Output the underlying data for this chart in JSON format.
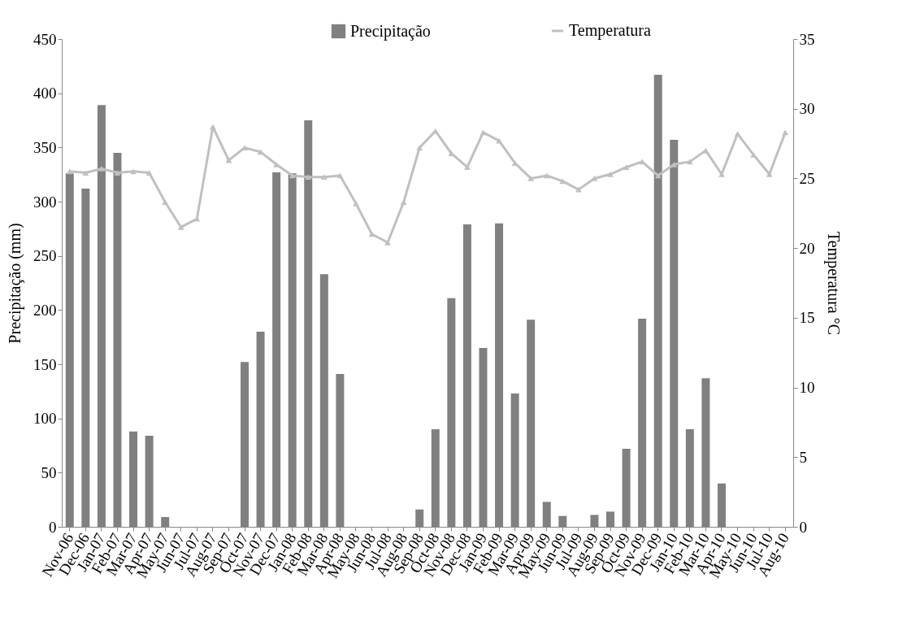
{
  "chart_data": {
    "type": "bar",
    "ylabel": "Precipitação (mm)",
    "y2label": "Temperatura °C",
    "categories": [
      "Nov-06",
      "Dec-06",
      "Jan-07",
      "Feb-07",
      "Mar-07",
      "Apr-07",
      "May-07",
      "Jun-07",
      "Jul-07",
      "Aug-07",
      "Sep-07",
      "Oct-07",
      "Nov-07",
      "Dec-07",
      "Jan-08",
      "Feb-08",
      "Mar-08",
      "Apr-08",
      "May-08",
      "Jun-08",
      "Jul-08",
      "Aug-08",
      "Sep-08",
      "Oct-08",
      "Nov-08",
      "Dec-08",
      "Jan-09",
      "Feb-09",
      "Mar-09",
      "Apr-09",
      "May-09",
      "Jun-09",
      "Jul-09",
      "Aug-09",
      "Sep-09",
      "Oct-09",
      "Nov-09",
      "Dec-09",
      "Jan-10",
      "Feb-10",
      "Mar-10",
      "Apr-10",
      "May-10",
      "Jun-10",
      "Jul-10",
      "Aug-10"
    ],
    "series": [
      {
        "name": "Precipitação",
        "color": "#808080",
        "values": [
          326,
          312,
          389,
          345,
          88,
          84,
          9,
          0,
          0,
          0,
          0,
          152,
          180,
          327,
          326,
          375,
          233,
          141,
          0,
          0,
          0,
          0,
          16,
          90,
          211,
          279,
          165,
          280,
          123,
          191,
          23,
          10,
          0,
          11,
          14,
          72,
          192,
          417,
          357,
          90,
          137,
          40,
          0,
          0,
          0,
          0
        ]
      },
      {
        "name": "Temperatura",
        "type": "line",
        "axis": "y2",
        "color": "#c0c0c0",
        "marker": "triangle",
        "values": [
          25.5,
          25.4,
          25.7,
          25.4,
          25.5,
          25.4,
          23.3,
          21.5,
          22.1,
          28.7,
          26.3,
          27.2,
          26.9,
          26.0,
          25.2,
          25.1,
          25.1,
          25.2,
          23.2,
          21.0,
          20.4,
          23.3,
          27.2,
          28.4,
          26.8,
          25.8,
          28.3,
          27.7,
          26.1,
          25.0,
          25.2,
          24.8,
          24.2,
          25.0,
          25.3,
          25.8,
          26.2,
          25.2,
          26.0,
          26.2,
          27.0,
          25.3,
          28.2,
          26.7,
          25.3,
          28.3
        ]
      }
    ],
    "ylim": [
      0,
      450
    ],
    "yticks": [
      0,
      50,
      100,
      150,
      200,
      250,
      300,
      350,
      400,
      450
    ],
    "y2lim": [
      0,
      35
    ],
    "y2ticks": [
      0,
      5,
      10,
      15,
      20,
      25,
      30,
      35
    ],
    "legend": "top",
    "grid": false
  }
}
